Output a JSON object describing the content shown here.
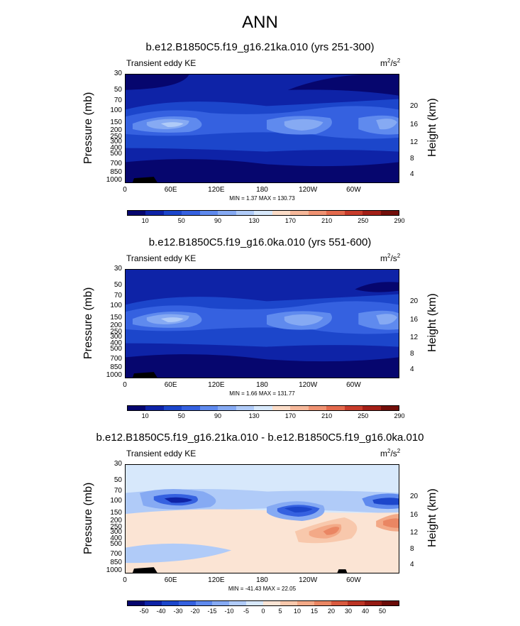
{
  "figure": {
    "title": "ANN"
  },
  "common": {
    "left_label": "Transient eddy KE",
    "units_base": "m",
    "units_exp1": "2",
    "units_mid": "/s",
    "units_exp2": "2",
    "ylabel_left": "Pressure (mb)",
    "ylabel_right": "Height (km)"
  },
  "chart_data": [
    {
      "type": "heatmap",
      "title": "b.e12.B1850C5.f19_g16.21ka.010 (yrs 251-300)",
      "left_label": "Transient eddy KE",
      "units": "m2/s2",
      "xlabel": "",
      "ylabel": "Pressure (mb)",
      "ylabel_right": "Height (km)",
      "x_ticks": [
        "0",
        "60E",
        "120E",
        "180",
        "120W",
        "60W"
      ],
      "y_ticks": [
        "30",
        "50",
        "70",
        "100",
        "150",
        "200",
        "250",
        "300",
        "400",
        "500",
        "700",
        "850",
        "1000"
      ],
      "y_ticks_right": [
        "20",
        "16",
        "12",
        "8",
        "4"
      ],
      "min_max": "MIN =   1.37  MAX = 130.73",
      "colorbar_labels": [
        "10",
        "50",
        "90",
        "130",
        "170",
        "210",
        "250",
        "290"
      ],
      "colors": [
        "#06066e",
        "#0e23a7",
        "#1c46cb",
        "#3561e0",
        "#5f8aee",
        "#86aaf3",
        "#b0cbf8",
        "#d7e8fb",
        "#fbdcc7",
        "#f6b89a",
        "#ef9272",
        "#e36a4d",
        "#c73c2b",
        "#a31f17",
        "#720e0a"
      ]
    },
    {
      "type": "heatmap",
      "title": "b.e12.B1850C5.f19_g16.0ka.010 (yrs 551-600)",
      "left_label": "Transient eddy KE",
      "units": "m2/s2",
      "xlabel": "",
      "ylabel": "Pressure (mb)",
      "ylabel_right": "Height (km)",
      "x_ticks": [
        "0",
        "60E",
        "120E",
        "180",
        "120W",
        "60W"
      ],
      "y_ticks": [
        "30",
        "50",
        "70",
        "100",
        "150",
        "200",
        "250",
        "300",
        "400",
        "500",
        "700",
        "850",
        "1000"
      ],
      "y_ticks_right": [
        "20",
        "16",
        "12",
        "8",
        "4"
      ],
      "min_max": "MIN =   1.66  MAX = 131.77",
      "colorbar_labels": [
        "10",
        "50",
        "90",
        "130",
        "170",
        "210",
        "250",
        "290"
      ],
      "colors": [
        "#06066e",
        "#0e23a7",
        "#1c46cb",
        "#3561e0",
        "#5f8aee",
        "#86aaf3",
        "#b0cbf8",
        "#d7e8fb",
        "#fbdcc7",
        "#f6b89a",
        "#ef9272",
        "#e36a4d",
        "#c73c2b",
        "#a31f17",
        "#720e0a"
      ]
    },
    {
      "type": "heatmap",
      "title": "b.e12.B1850C5.f19_g16.21ka.010 - b.e12.B1850C5.f19_g16.0ka.010",
      "left_label": "Transient eddy KE",
      "units": "m2/s2",
      "xlabel": "",
      "ylabel": "Pressure (mb)",
      "ylabel_right": "Height (km)",
      "x_ticks": [
        "0",
        "60E",
        "120E",
        "180",
        "120W",
        "60W"
      ],
      "y_ticks": [
        "30",
        "50",
        "70",
        "100",
        "150",
        "200",
        "250",
        "300",
        "400",
        "500",
        "700",
        "850",
        "1000"
      ],
      "y_ticks_right": [
        "20",
        "16",
        "12",
        "8",
        "4"
      ],
      "min_max": "MIN = -41.43  MAX =  22.05",
      "colorbar_labels": [
        "-50",
        "-40",
        "-30",
        "-20",
        "-15",
        "-10",
        "-5",
        "0",
        "5",
        "10",
        "15",
        "20",
        "30",
        "40",
        "50"
      ],
      "colors": [
        "#06066e",
        "#0e23a7",
        "#1c46cb",
        "#3561e0",
        "#5f8aee",
        "#86aaf3",
        "#b0cbf8",
        "#d7e8fb",
        "#fbe4d4",
        "#f8c8ac",
        "#f3a987",
        "#ea8663",
        "#d95a3f",
        "#bb3424",
        "#951a13",
        "#6b0b08"
      ]
    }
  ]
}
